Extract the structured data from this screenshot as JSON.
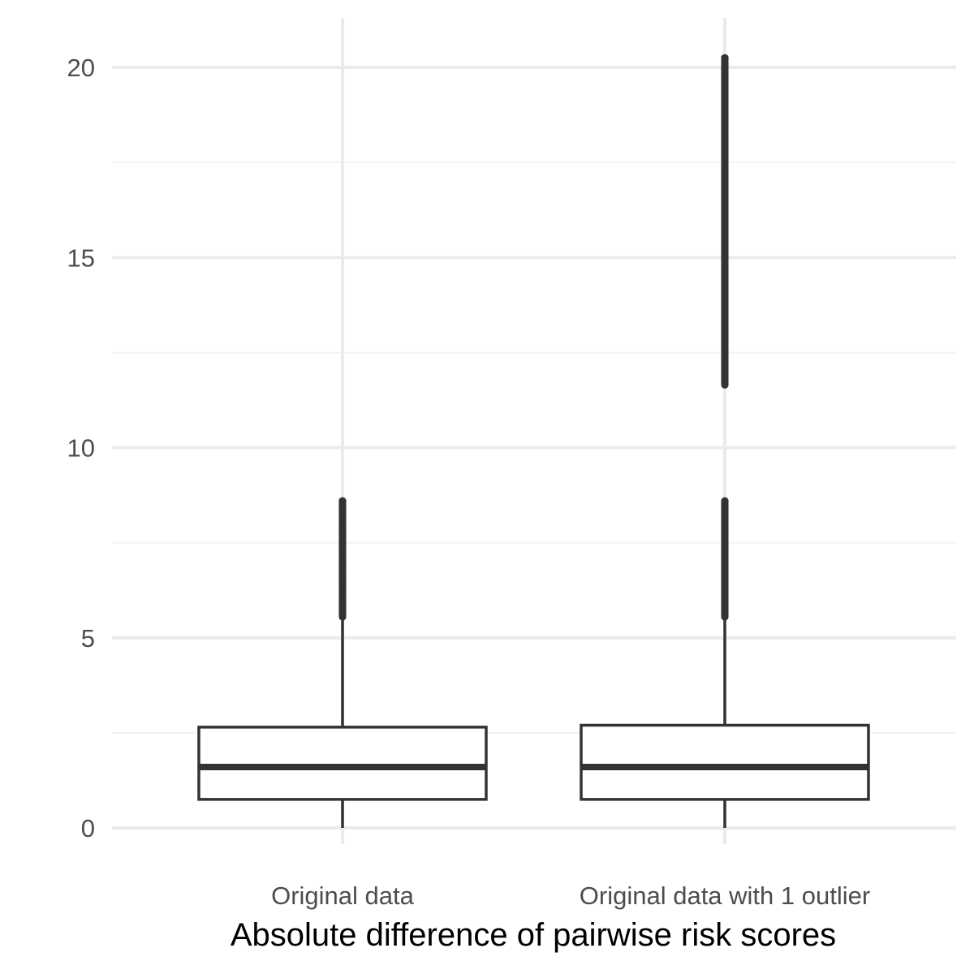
{
  "chart_data": {
    "type": "boxplot",
    "title": "",
    "xlabel": "Absolute difference of pairwise risk scores",
    "ylabel": "",
    "categories": [
      "Original data",
      "Original data with 1 outlier"
    ],
    "ylim": [
      -0.6,
      21.3
    ],
    "y_major_ticks": [
      0,
      5,
      10,
      15,
      20
    ],
    "y_minor_ticks": [
      2.5,
      7.5,
      12.5,
      17.5
    ],
    "y_tick_labels": [
      "0",
      "5",
      "10",
      "15",
      "20"
    ],
    "grid": true,
    "boxes": [
      {
        "category": "Original data",
        "whisker_low": 0.0,
        "q1": 0.75,
        "median": 1.6,
        "q3": 2.65,
        "whisker_high": 2.7,
        "outlier_ranges": [
          {
            "min": 5.55,
            "max": 8.6
          }
        ]
      },
      {
        "category": "Original data with 1 outlier",
        "whisker_low": 0.0,
        "q1": 0.75,
        "median": 1.6,
        "q3": 2.7,
        "whisker_high": 2.75,
        "outlier_ranges": [
          {
            "min": 5.55,
            "max": 8.6
          },
          {
            "min": 11.65,
            "max": 20.25
          }
        ]
      }
    ],
    "colors": {
      "box_stroke": "#333333",
      "box_fill": "#ffffff",
      "grid_major": "#ebebeb",
      "grid_minor": "#f2f2f2",
      "tick_text": "#4d4d4d",
      "title_text": "#000000"
    }
  }
}
